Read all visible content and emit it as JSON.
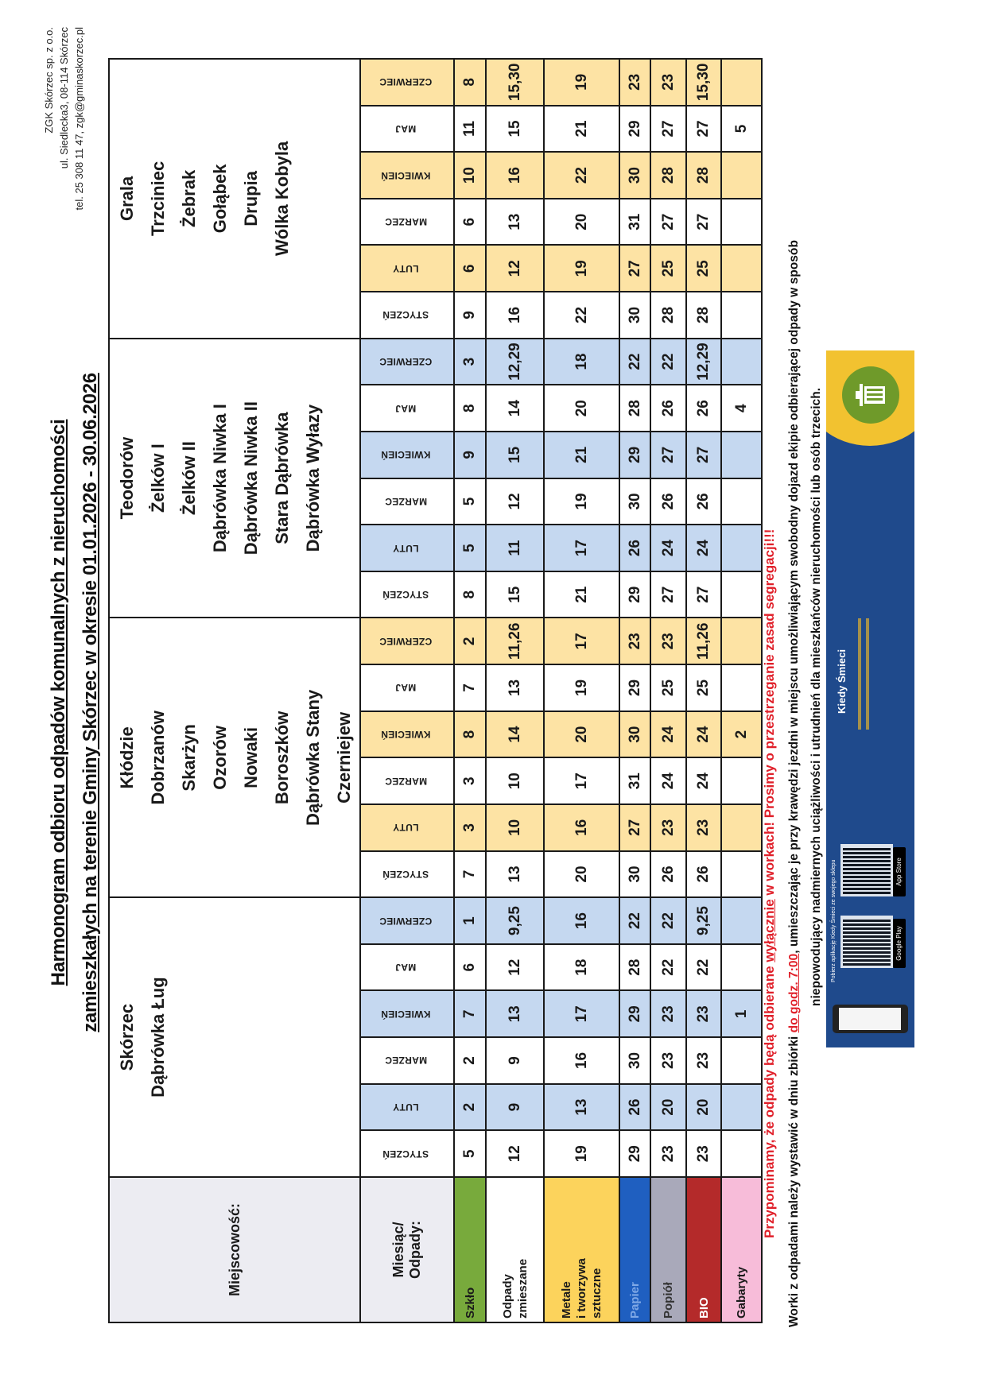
{
  "header": {
    "title_line1": "Harmonogram odbioru odpadów komunalnych z nieruchomości",
    "title_line2": "zamieszkałych na terenie Gminy Skórzec w okresie 01.01.2026 - 30.06.2026",
    "company": [
      "ZGK Skórzec sp. z o.o.",
      "ul. Siedlecka3, 08-114 Skórzec",
      "tel. 25 308 11 47, zgk@gminaskorzec.pl"
    ]
  },
  "table": {
    "locality_label": "Miejscowość:",
    "month_waste_label": [
      "Miesiąc/",
      "Odpady:"
    ],
    "months": [
      "STYCZEŃ",
      "LUTY",
      "MARZEC",
      "KWIECIEŃ",
      "MAJ",
      "CZERWIEC"
    ],
    "groups": [
      {
        "localities": [
          "Skórzec",
          "Dąbrówka Ług"
        ],
        "accent": "#c5d8f0"
      },
      {
        "localities": [
          "Kłódzie",
          "Dobrzanów",
          "Skarżyn",
          "Ozorów",
          "Nowaki",
          "Boroszków",
          "Dąbrówka Stany",
          "Czerniejew"
        ],
        "accent": "#fde3a4"
      },
      {
        "localities": [
          "Teodorów",
          "Żelków I",
          "Żelków II",
          "Dąbrówka Niwka I",
          "Dąbrówka Niwka II",
          "Stara Dąbrówka",
          "Dąbrówka Wyłazy"
        ],
        "accent": "#c5d8f0"
      },
      {
        "localities": [
          "Grala",
          "Trzciniec",
          "Żebrak",
          "Gołąbek",
          "Drupia",
          "Wólka Kobyla"
        ],
        "accent": "#fde3a4"
      }
    ],
    "rows": [
      {
        "label": [
          "Szkło"
        ],
        "color": "#78aa3c",
        "text_color": "#1a1a1a",
        "values": [
          [
            "5",
            "2",
            "2",
            "7",
            "6",
            "1"
          ],
          [
            "7",
            "3",
            "3",
            "8",
            "7",
            "2"
          ],
          [
            "8",
            "5",
            "5",
            "9",
            "8",
            "3"
          ],
          [
            "9",
            "6",
            "6",
            "10",
            "11",
            "8"
          ]
        ]
      },
      {
        "label": [
          "Odpady",
          "zmieszane"
        ],
        "color": "#ffffff",
        "text_color": "#1a1a1a",
        "values": [
          [
            "12",
            "9",
            "9",
            "13",
            "12",
            "9,25"
          ],
          [
            "13",
            "10",
            "10",
            "14",
            "13",
            "11,26"
          ],
          [
            "15",
            "11",
            "12",
            "15",
            "14",
            "12,29"
          ],
          [
            "16",
            "12",
            "13",
            "16",
            "15",
            "15,30"
          ]
        ]
      },
      {
        "label": [
          "Metale",
          "i tworzywa",
          "sztuczne"
        ],
        "color": "#fcd35c",
        "text_color": "#1a1a1a",
        "values": [
          [
            "19",
            "13",
            "16",
            "17",
            "18",
            "16"
          ],
          [
            "20",
            "16",
            "17",
            "20",
            "19",
            "17"
          ],
          [
            "21",
            "17",
            "19",
            "21",
            "20",
            "18"
          ],
          [
            "22",
            "19",
            "20",
            "22",
            "21",
            "19"
          ]
        ]
      },
      {
        "label": [
          "Papier"
        ],
        "color": "#1f5fc0",
        "text_color": "#7fa8e6",
        "values": [
          [
            "29",
            "26",
            "30",
            "29",
            "28",
            "22"
          ],
          [
            "30",
            "27",
            "31",
            "30",
            "29",
            "23"
          ],
          [
            "29",
            "26",
            "30",
            "29",
            "28",
            "22"
          ],
          [
            "30",
            "27",
            "31",
            "30",
            "29",
            "23"
          ]
        ]
      },
      {
        "label": [
          "Popiół"
        ],
        "color": "#a9a9ba",
        "text_color": "#333333",
        "values": [
          [
            "23",
            "20",
            "23",
            "23",
            "22",
            "22"
          ],
          [
            "26",
            "23",
            "24",
            "24",
            "25",
            "23"
          ],
          [
            "27",
            "24",
            "26",
            "27",
            "26",
            "22"
          ],
          [
            "28",
            "25",
            "27",
            "28",
            "27",
            "23"
          ]
        ]
      },
      {
        "label": [
          "BIO"
        ],
        "color": "#b42a2a",
        "text_color": "#ffffff",
        "values": [
          [
            "23",
            "20",
            "23",
            "23",
            "22",
            "9,25"
          ],
          [
            "26",
            "23",
            "24",
            "24",
            "25",
            "11,26"
          ],
          [
            "27",
            "24",
            "26",
            "27",
            "26",
            "12,29"
          ],
          [
            "28",
            "25",
            "27",
            "28",
            "27",
            "15,30"
          ]
        ]
      },
      {
        "label": [
          "Gabaryty"
        ],
        "color": "#f7bcd9",
        "text_color": "#1a1a1a",
        "values": [
          [
            "",
            "",
            "",
            "1",
            "",
            ""
          ],
          [
            "",
            "",
            "",
            "2",
            "",
            ""
          ],
          [
            "",
            "",
            "",
            "",
            "4",
            ""
          ],
          [
            "",
            "",
            "",
            "",
            "5",
            ""
          ]
        ]
      }
    ]
  },
  "notice": {
    "red_part1": "Przypominamy, że odpady będą odbierane ",
    "red_underlined": "wyłącznie",
    "red_part2": " w workach!  Prosimy o przestrzeganie zasad segregacji!!!",
    "line1_part1": "Worki z odpadami należy wystawić w dniu zbiórki ",
    "line1_underlined": "do godz. 7:00",
    "line1_part2": ", umieszczając je przy krawędzi jezdni w miejscu umożliwiającym swobodny dojazd ekipie odbierającej odpady w sposób",
    "line2": "niepowodujący nadmiernych uciążliwości i utrudnień dla mieszkańców nieruchomości lub osób trzecich."
  },
  "banner": {
    "download_text": "Pobierz aplikację Kiedy Śmieci ze swojego sklepu",
    "app_name": "Kiedy Śmieci",
    "stores": [
      "Google Play",
      "App Store"
    ],
    "icon": "trash-bin-icon",
    "colors": {
      "background": "#1f4a8c",
      "accent": "#f2c230",
      "circle": "#6f9a2a"
    }
  }
}
